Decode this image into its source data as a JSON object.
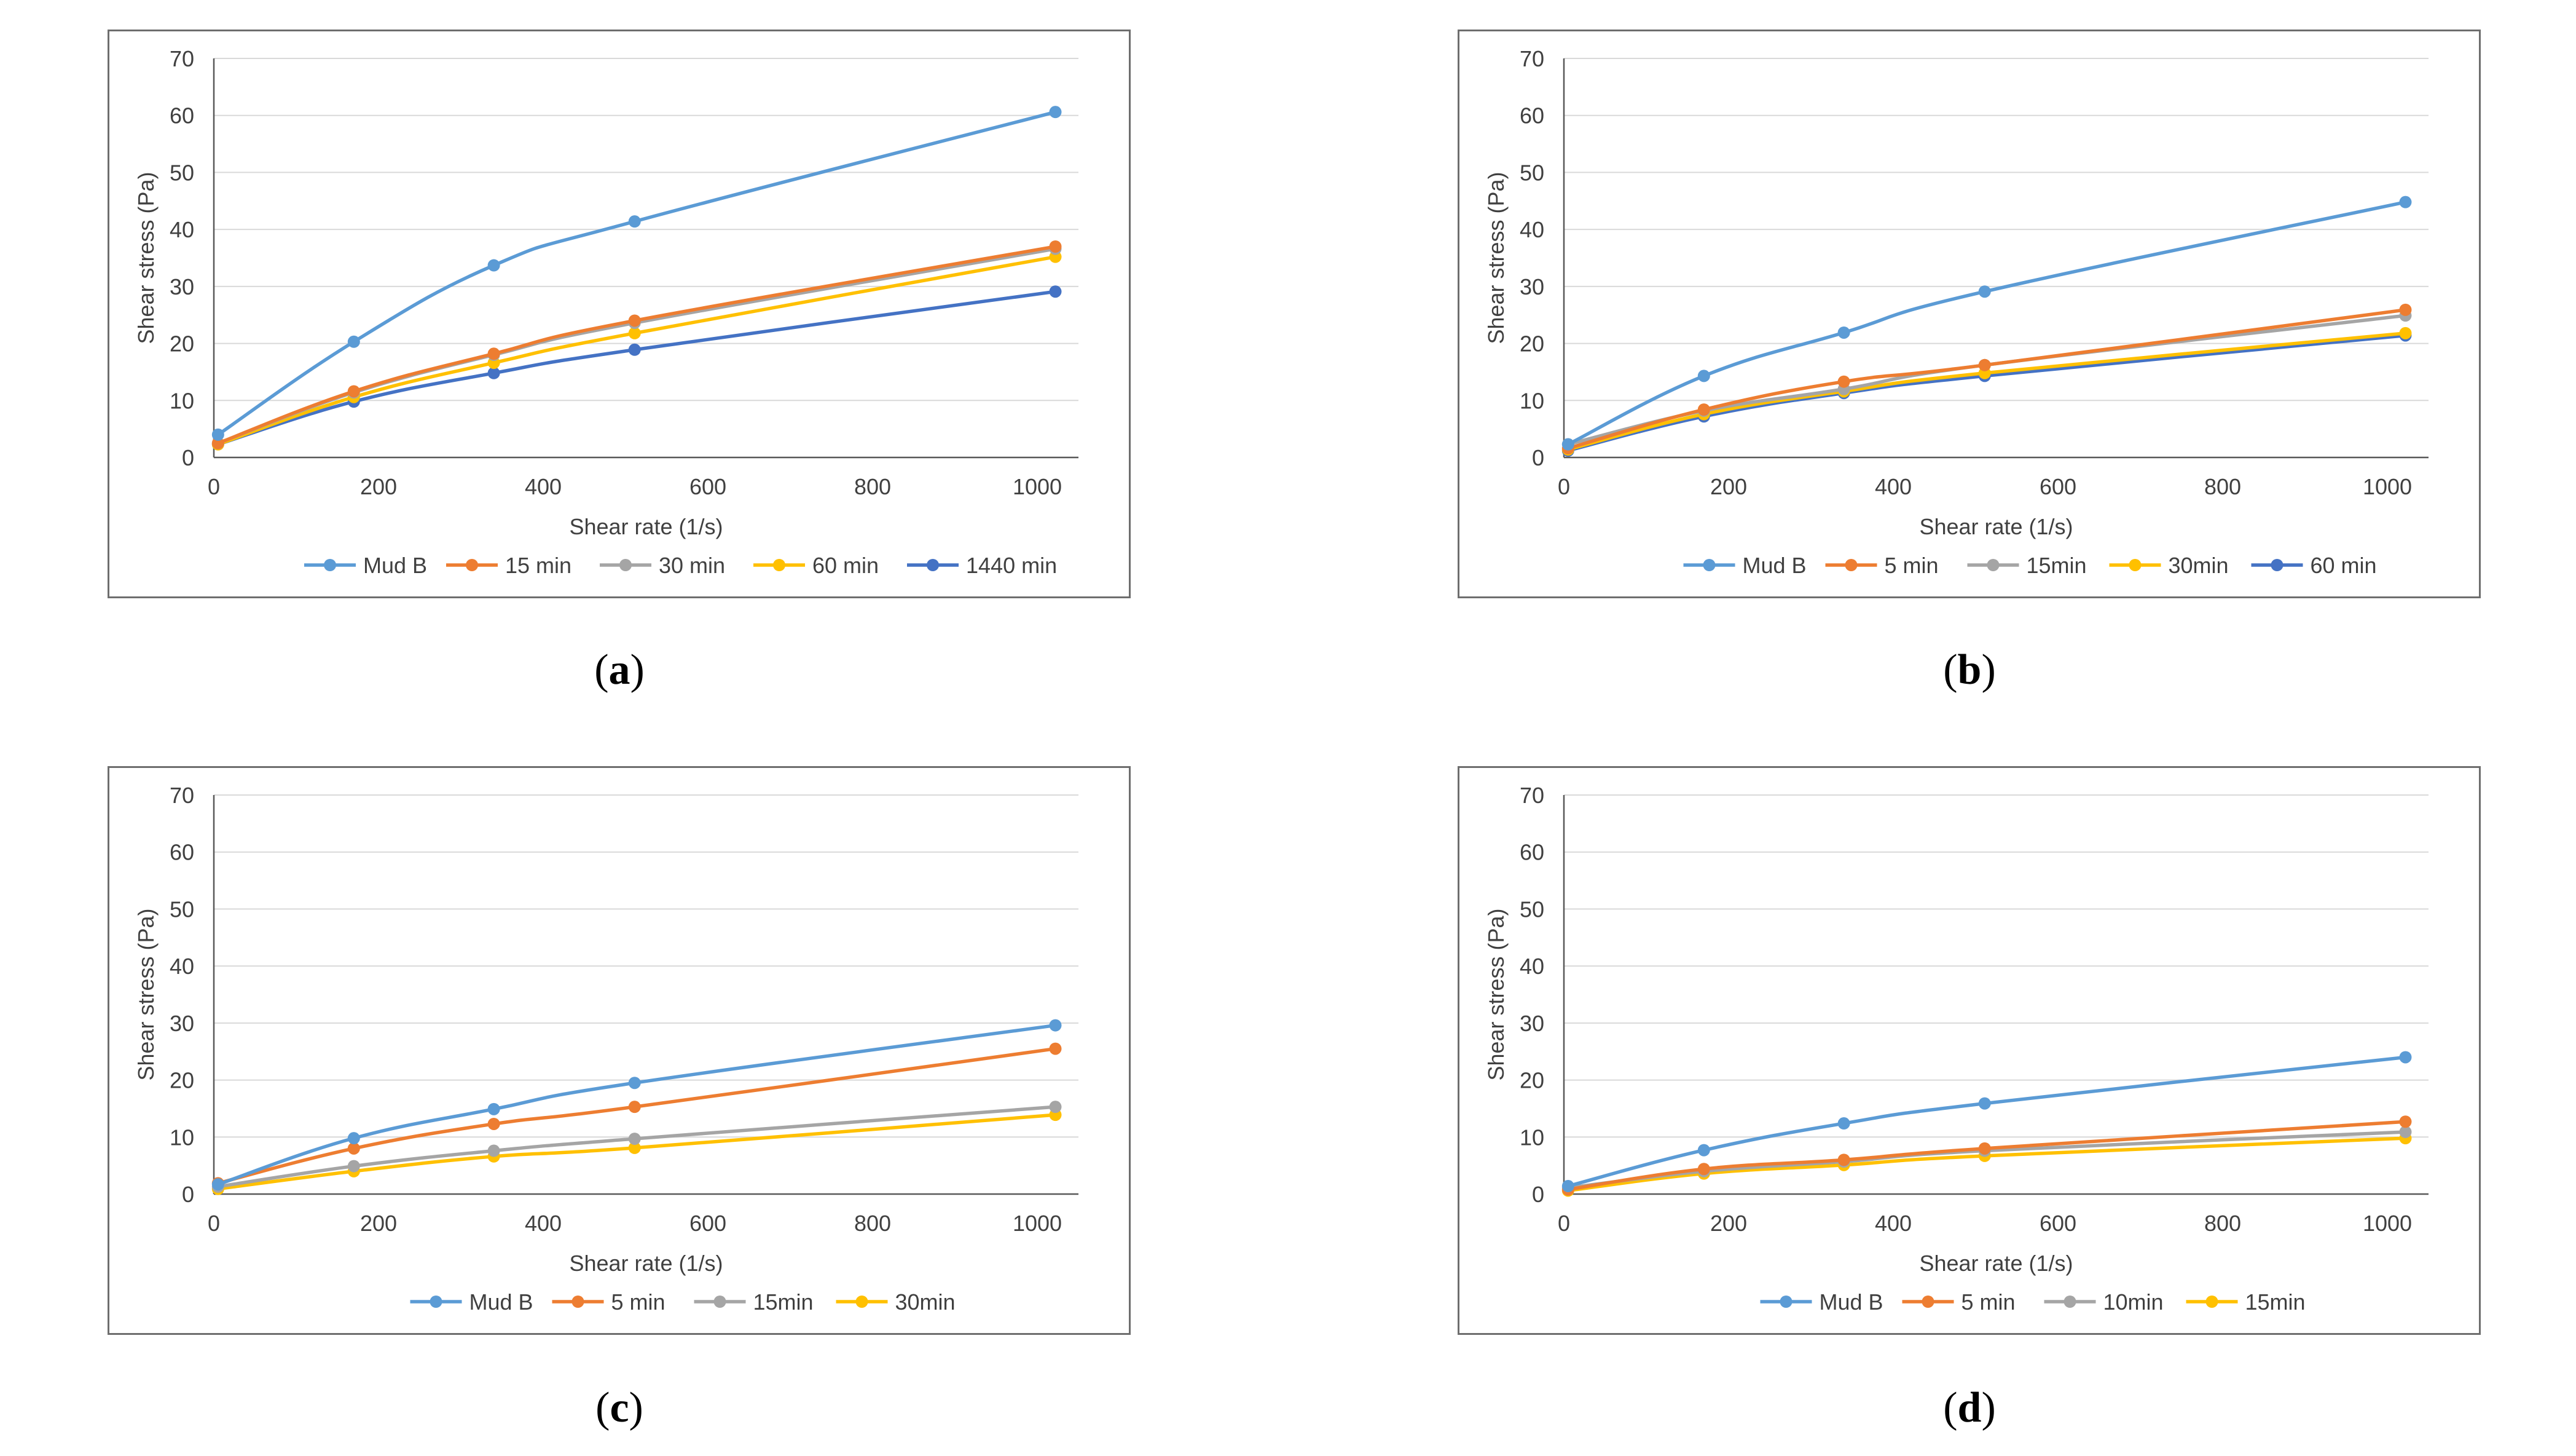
{
  "chart_data": [
    {
      "type": "line",
      "panel": "a",
      "caption": "a",
      "xlabel": "Shear rate (1/s)",
      "ylabel": "Shear stress (Pa)",
      "xlim": [
        0,
        1050
      ],
      "ylim": [
        0,
        70
      ],
      "xticks": [
        0,
        200,
        400,
        600,
        800,
        1000
      ],
      "yticks": [
        0,
        10,
        20,
        30,
        40,
        50,
        60,
        70
      ],
      "grid": true,
      "legend": "bottom",
      "x": [
        5.1,
        170,
        340,
        511,
        1022
      ],
      "series": [
        {
          "name": "Mud B",
          "color": "#5b9bd5",
          "values": [
            4.0,
            20.3,
            33.7,
            41.4,
            60.6
          ]
        },
        {
          "name": "15 min",
          "color": "#ed7d31",
          "values": [
            2.5,
            11.6,
            18.2,
            24.0,
            37.0
          ]
        },
        {
          "name": "30 min",
          "color": "#a5a5a5",
          "values": [
            2.5,
            11.4,
            18.0,
            23.6,
            36.6
          ]
        },
        {
          "name": "60 min",
          "color": "#ffc000",
          "values": [
            2.3,
            10.6,
            16.6,
            21.8,
            35.2
          ]
        },
        {
          "name": "1440 min",
          "color": "#4472c4",
          "values": [
            2.3,
            9.8,
            14.8,
            18.9,
            29.1
          ]
        }
      ]
    },
    {
      "type": "line",
      "panel": "b",
      "caption": "b",
      "xlabel": "Shear rate (1/s)",
      "ylabel": "Shear stress (Pa)",
      "xlim": [
        0,
        1050
      ],
      "ylim": [
        0,
        70
      ],
      "xticks": [
        0,
        200,
        400,
        600,
        800,
        1000
      ],
      "yticks": [
        0,
        10,
        20,
        30,
        40,
        50,
        60,
        70
      ],
      "grid": true,
      "legend": "bottom",
      "x": [
        5.1,
        170,
        340,
        511,
        1022
      ],
      "series": [
        {
          "name": "Mud B",
          "color": "#5b9bd5",
          "values": [
            2.3,
            14.3,
            21.9,
            29.1,
            44.8
          ]
        },
        {
          "name": "5 min",
          "color": "#ed7d31",
          "values": [
            1.6,
            8.4,
            13.3,
            16.2,
            25.9
          ]
        },
        {
          "name": "15min",
          "color": "#a5a5a5",
          "values": [
            2.3,
            8.2,
            12.0,
            16.2,
            24.9
          ]
        },
        {
          "name": "30min",
          "color": "#ffc000",
          "values": [
            1.4,
            7.6,
            11.6,
            14.8,
            21.8
          ]
        },
        {
          "name": "60 min",
          "color": "#4472c4",
          "values": [
            1.2,
            7.2,
            11.3,
            14.3,
            21.4
          ]
        }
      ]
    },
    {
      "type": "line",
      "panel": "c",
      "caption": "c",
      "xlabel": "Shear rate (1/s)",
      "ylabel": "Shear stress (Pa)",
      "xlim": [
        0,
        1050
      ],
      "ylim": [
        0,
        70
      ],
      "xticks": [
        0,
        200,
        400,
        600,
        800,
        1000
      ],
      "yticks": [
        0,
        10,
        20,
        30,
        40,
        50,
        60,
        70
      ],
      "grid": true,
      "legend": "bottom",
      "x": [
        5.1,
        170,
        340,
        511,
        1022
      ],
      "series": [
        {
          "name": "Mud B",
          "color": "#5b9bd5",
          "values": [
            1.7,
            9.8,
            14.9,
            19.5,
            29.6
          ]
        },
        {
          "name": "5 min",
          "color": "#ed7d31",
          "values": [
            1.9,
            8.0,
            12.3,
            15.3,
            25.5
          ]
        },
        {
          "name": "15min",
          "color": "#a5a5a5",
          "values": [
            1.3,
            4.9,
            7.6,
            9.7,
            15.3
          ]
        },
        {
          "name": "30min",
          "color": "#ffc000",
          "values": [
            0.9,
            4.0,
            6.6,
            8.1,
            13.9
          ]
        }
      ]
    },
    {
      "type": "line",
      "panel": "d",
      "caption": "d",
      "xlabel": "Shear rate (1/s)",
      "ylabel": "Shear stress (Pa)",
      "xlim": [
        0,
        1050
      ],
      "ylim": [
        0,
        70
      ],
      "xticks": [
        0,
        200,
        400,
        600,
        800,
        1000
      ],
      "yticks": [
        0,
        10,
        20,
        30,
        40,
        50,
        60,
        70
      ],
      "grid": true,
      "legend": "bottom",
      "x": [
        5.1,
        170,
        340,
        511,
        1022
      ],
      "series": [
        {
          "name": "Mud B",
          "color": "#5b9bd5",
          "values": [
            1.4,
            7.7,
            12.4,
            15.9,
            24.0
          ]
        },
        {
          "name": "5 min",
          "color": "#ed7d31",
          "values": [
            0.8,
            4.4,
            6.0,
            8.0,
            12.7
          ]
        },
        {
          "name": "10min",
          "color": "#a5a5a5",
          "values": [
            1.1,
            4.0,
            5.7,
            7.6,
            10.9
          ]
        },
        {
          "name": "15min",
          "color": "#ffc000",
          "values": [
            0.6,
            3.6,
            5.1,
            6.7,
            9.8
          ]
        }
      ]
    }
  ]
}
